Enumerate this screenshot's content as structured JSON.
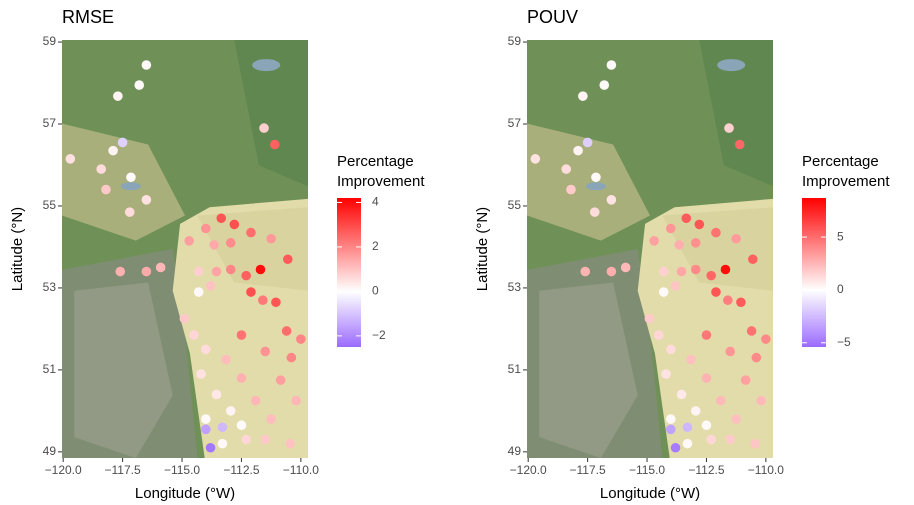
{
  "chart_data": [
    {
      "type": "scatter",
      "title": "RMSE",
      "x_label": "Longitude (°W)",
      "y_label": "Latitude (°N)",
      "legend_title": [
        "Percentage",
        "Improvement"
      ],
      "x": [
        -116.5,
        -117.7,
        -116.8,
        -111.55,
        -111.1,
        -117.5,
        -117.9,
        -119.7,
        -118.4,
        -117.15,
        -118.2,
        -116.5,
        -117.2,
        -113.35,
        -112.8,
        -112.1,
        -114.0,
        -114.7,
        -113.65,
        -112.95,
        -111.25,
        -110.55,
        -111.7,
        -112.3,
        -115.9,
        -116.5,
        -117.6,
        -114.3,
        -113.55,
        -112.95,
        -114.3,
        -113.8,
        -112.1,
        -111.05,
        -111.6,
        -114.9,
        -114.5,
        -112.5,
        -110.6,
        -110.0,
        -114.0,
        -113.15,
        -111.5,
        -110.4,
        -114.2,
        -112.5,
        -110.85,
        -113.55,
        -111.9,
        -110.2,
        -112.95,
        -111.25,
        -114.0,
        -113.3,
        -112.5,
        -114.0,
        -111.5,
        -110.45,
        -113.3,
        -113.8,
        -112.3
      ],
      "y": [
        58.44,
        57.68,
        57.95,
        56.9,
        56.5,
        56.55,
        56.35,
        56.15,
        55.9,
        55.7,
        55.4,
        55.15,
        54.85,
        54.7,
        54.55,
        54.35,
        54.45,
        54.15,
        54.05,
        54.1,
        54.2,
        53.7,
        53.45,
        53.3,
        53.5,
        53.4,
        53.4,
        53.4,
        53.4,
        53.45,
        52.9,
        53.05,
        52.9,
        52.65,
        52.7,
        52.25,
        51.85,
        51.85,
        51.95,
        51.75,
        51.5,
        51.25,
        51.45,
        51.3,
        50.9,
        50.8,
        50.75,
        50.4,
        50.25,
        50.25,
        50.0,
        49.8,
        49.8,
        49.6,
        49.65,
        49.55,
        49.3,
        49.2,
        49.2,
        49.1,
        49.3
      ],
      "values": [
        0.1,
        0.2,
        0.1,
        0.8,
        2.6,
        -0.8,
        0.2,
        0.5,
        0.6,
        0.1,
        0.9,
        0.5,
        0.6,
        2.8,
        2.9,
        2.4,
        1.8,
        1.6,
        1.4,
        1.9,
        1.7,
        2.7,
        4.0,
        2.6,
        1.2,
        1.4,
        1.3,
        0.8,
        1.5,
        2.0,
        0.1,
        1.0,
        2.9,
        2.8,
        2.2,
        0.9,
        0.7,
        2.3,
        2.4,
        2.0,
        0.6,
        1.1,
        1.8,
        2.0,
        0.5,
        1.3,
        1.6,
        0.4,
        1.2,
        1.2,
        0.2,
        1.1,
        0.1,
        -1.2,
        0.1,
        -1.6,
        0.9,
        1.0,
        0.1,
        -2.3,
        0.7
      ],
      "xlim": [
        -120.05,
        -109.7
      ],
      "ylim": [
        48.85,
        59.05
      ],
      "xticks": [
        {
          "value": -120,
          "label": "−120.0"
        },
        {
          "value": -117.5,
          "label": "−117.5"
        },
        {
          "value": -115,
          "label": "−115.0"
        },
        {
          "value": -112.5,
          "label": "−112.5"
        },
        {
          "value": -110,
          "label": "−110.0"
        }
      ],
      "yticks": [
        49,
        51,
        53,
        55,
        57,
        59
      ],
      "clim": [
        -2.5,
        4.2
      ],
      "cticks": [
        {
          "value": -2,
          "label": "−2"
        },
        0,
        2,
        4
      ],
      "colors": {
        "low": "#9b6bff",
        "mid": "#ffffff",
        "high": "#ff0000"
      }
    },
    {
      "type": "scatter",
      "title": "POUV",
      "x_label": "Longitude (°W)",
      "y_label": "Latitude (°N)",
      "legend_title": [
        "Percentage",
        "Improvement"
      ],
      "x": [
        -116.5,
        -117.7,
        -116.8,
        -111.55,
        -111.1,
        -117.5,
        -117.9,
        -119.7,
        -118.4,
        -117.15,
        -118.2,
        -116.5,
        -117.2,
        -113.35,
        -112.8,
        -112.1,
        -114.0,
        -114.7,
        -113.65,
        -112.95,
        -111.25,
        -110.55,
        -111.7,
        -112.3,
        -115.9,
        -116.5,
        -117.6,
        -114.3,
        -113.55,
        -112.95,
        -114.3,
        -113.8,
        -112.1,
        -111.05,
        -111.6,
        -114.9,
        -114.5,
        -112.5,
        -110.6,
        -110.0,
        -114.0,
        -113.15,
        -111.5,
        -110.4,
        -114.2,
        -112.5,
        -110.85,
        -113.55,
        -111.9,
        -110.2,
        -112.95,
        -111.25,
        -114.0,
        -113.3,
        -112.5,
        -114.0,
        -111.5,
        -110.45,
        -113.3,
        -113.8,
        -112.3
      ],
      "y": [
        58.44,
        57.68,
        57.95,
        56.9,
        56.5,
        56.55,
        56.35,
        56.15,
        55.9,
        55.7,
        55.4,
        55.15,
        54.85,
        54.7,
        54.55,
        54.35,
        54.45,
        54.15,
        54.05,
        54.1,
        54.2,
        53.7,
        53.45,
        53.3,
        53.5,
        53.4,
        53.4,
        53.4,
        53.4,
        53.45,
        52.9,
        53.05,
        52.9,
        52.65,
        52.7,
        52.25,
        51.85,
        51.85,
        51.95,
        51.75,
        51.5,
        51.25,
        51.45,
        51.3,
        50.9,
        50.8,
        50.75,
        50.4,
        50.25,
        50.25,
        50.0,
        49.8,
        49.8,
        49.6,
        49.65,
        49.55,
        49.3,
        49.2,
        49.2,
        49.1,
        49.3
      ],
      "values": [
        0.2,
        0.4,
        0.2,
        1.6,
        5.2,
        -1.8,
        0.4,
        1.0,
        1.2,
        0.2,
        1.8,
        1.0,
        1.2,
        5.6,
        5.8,
        4.8,
        3.6,
        3.2,
        2.8,
        3.8,
        3.4,
        5.4,
        8.3,
        5.2,
        2.4,
        2.8,
        2.6,
        1.6,
        3.0,
        4.0,
        0.2,
        2.0,
        5.8,
        5.6,
        4.4,
        1.8,
        1.4,
        4.6,
        4.8,
        4.0,
        1.2,
        2.2,
        3.6,
        4.0,
        1.0,
        2.6,
        3.2,
        0.8,
        2.4,
        2.4,
        0.4,
        2.2,
        0.2,
        -2.6,
        0.2,
        -3.4,
        1.8,
        2.0,
        0.2,
        -4.8,
        1.4
      ],
      "xlim": [
        -120.05,
        -109.7
      ],
      "ylim": [
        48.85,
        59.05
      ],
      "xticks": [
        {
          "value": -120,
          "label": "−120.0"
        },
        {
          "value": -117.5,
          "label": "−117.5"
        },
        {
          "value": -115,
          "label": "−115.0"
        },
        {
          "value": -112.5,
          "label": "−112.5"
        },
        {
          "value": -110,
          "label": "−110.0"
        }
      ],
      "yticks": [
        49,
        51,
        53,
        55,
        57,
        59
      ],
      "clim": [
        -5.4,
        8.7
      ],
      "cticks": [
        {
          "value": -5,
          "label": "−5"
        },
        0,
        5
      ],
      "colors": {
        "low": "#9b6bff",
        "mid": "#ffffff",
        "high": "#ff0000"
      }
    }
  ]
}
